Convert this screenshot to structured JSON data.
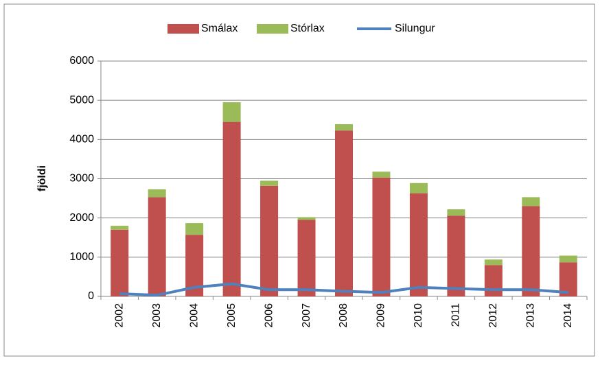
{
  "chart_data": {
    "type": "bar",
    "stacked": true,
    "ylabel": "fjöldi",
    "categories": [
      "2002",
      "2003",
      "2004",
      "2005",
      "2006",
      "2007",
      "2008",
      "2009",
      "2010",
      "2011",
      "2012",
      "2013",
      "2014"
    ],
    "series": [
      {
        "name": "Smálax",
        "color": "#c0504d",
        "values": [
          1700,
          2530,
          1570,
          4450,
          2820,
          1950,
          4230,
          3030,
          2630,
          2060,
          800,
          2300,
          870
        ]
      },
      {
        "name": "Stórlax",
        "color": "#9bbb59",
        "values": [
          100,
          200,
          300,
          500,
          130,
          70,
          160,
          150,
          260,
          160,
          140,
          230,
          170
        ]
      },
      {
        "name": "Silungur",
        "color": "#4f81bd",
        "type": "line",
        "values": [
          70,
          30,
          230,
          320,
          170,
          170,
          130,
          100,
          230,
          200,
          170,
          170,
          100
        ]
      }
    ],
    "ylim": [
      0,
      6000
    ],
    "yticks": [
      0,
      1000,
      2000,
      3000,
      4000,
      5000,
      6000
    ],
    "grid": true,
    "legend": "top"
  }
}
